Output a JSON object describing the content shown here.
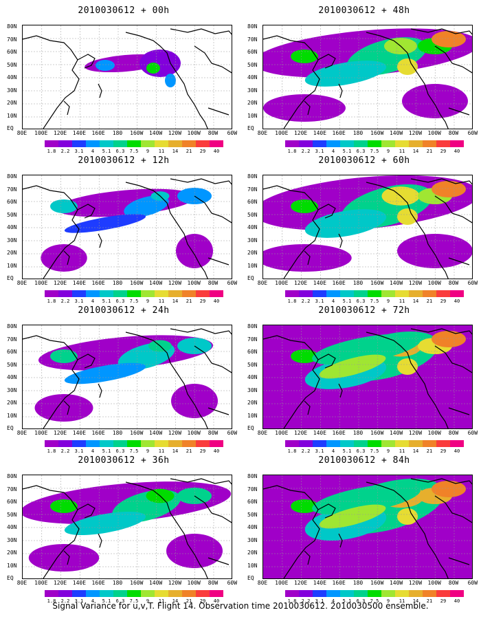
{
  "caption": "Signal Variance for u,v,T. Flight 14. Observation time 2010030612. 2010030500 ensemble.",
  "panels": [
    {
      "title": "2010030612 + 00h",
      "level": 0
    },
    {
      "title": "2010030612 + 48h",
      "level": 4
    },
    {
      "title": "2010030612 + 12h",
      "level": 1
    },
    {
      "title": "2010030612 + 60h",
      "level": 5
    },
    {
      "title": "2010030612 + 24h",
      "level": 2
    },
    {
      "title": "2010030612 + 72h",
      "level": 6
    },
    {
      "title": "2010030612 + 36h",
      "level": 3
    },
    {
      "title": "2010030612 + 84h",
      "level": 7
    }
  ],
  "lat_labels": [
    "80N",
    "70N",
    "60N",
    "50N",
    "40N",
    "30N",
    "20N",
    "10N",
    "EQ"
  ],
  "lon_labels": [
    "80E",
    "100E",
    "120E",
    "140E",
    "160E",
    "180",
    "160W",
    "140W",
    "120W",
    "100W",
    "80W",
    "60W"
  ],
  "colorbar": {
    "labels": [
      "1.8",
      "2.2",
      "3.1",
      "4",
      "5.1",
      "6.3",
      "7.5",
      "9",
      "11",
      "14",
      "21",
      "29",
      "40"
    ],
    "colors": [
      "#a000c8",
      "#8200dc",
      "#1e3cff",
      "#0096ff",
      "#00c8c8",
      "#00d28c",
      "#00dc00",
      "#a0e632",
      "#e6dc32",
      "#e6af2d",
      "#f08228",
      "#fa3c3c",
      "#f00082"
    ]
  }
}
